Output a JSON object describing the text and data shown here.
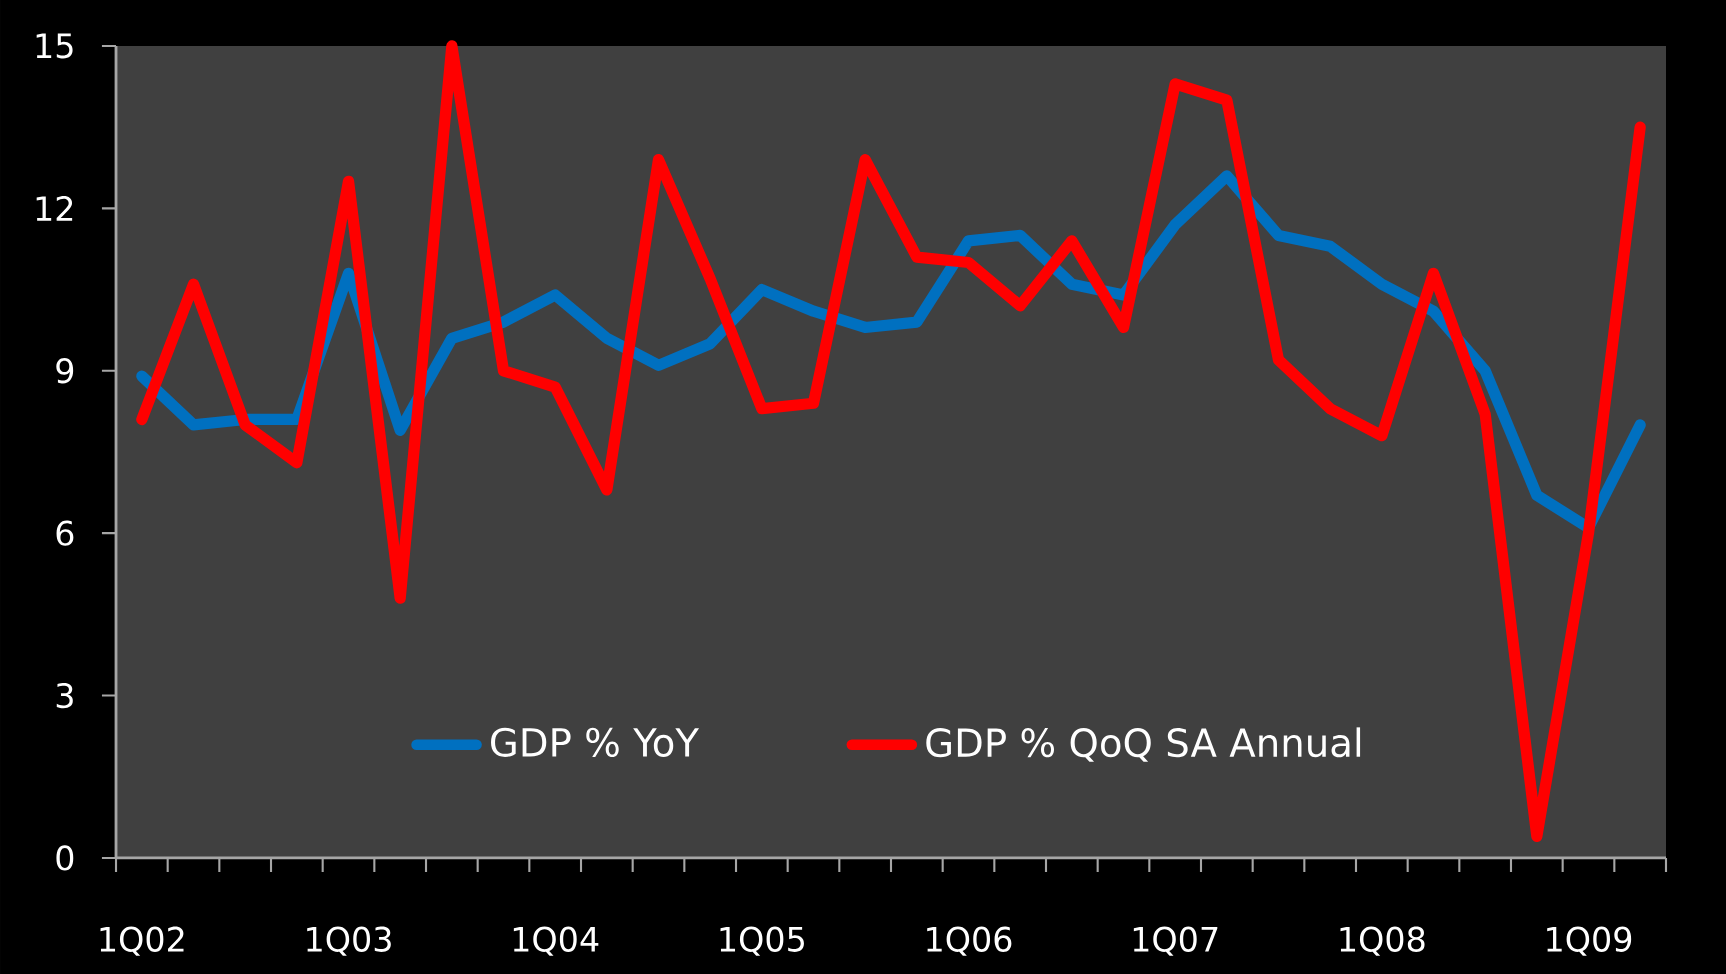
{
  "chart_data": {
    "type": "line",
    "categories": [
      "1Q02",
      null,
      null,
      null,
      "1Q03",
      null,
      null,
      null,
      "1Q04",
      null,
      null,
      null,
      "1Q05",
      null,
      null,
      null,
      "1Q06",
      null,
      null,
      null,
      "1Q07",
      null,
      null,
      null,
      "1Q08",
      null,
      null,
      null,
      "1Q09",
      null
    ],
    "series": [
      {
        "name": "GDP % YoY",
        "color": "#0070c0",
        "values": [
          8.9,
          8.0,
          8.1,
          8.1,
          10.8,
          7.9,
          9.6,
          9.9,
          10.4,
          9.6,
          9.1,
          9.5,
          10.5,
          10.1,
          9.8,
          9.9,
          11.4,
          11.5,
          10.6,
          10.4,
          11.7,
          12.6,
          11.5,
          11.3,
          10.6,
          10.1,
          9.0,
          6.7,
          6.1,
          8.0
        ]
      },
      {
        "name": "GDP % QoQ SA Annual",
        "color": "#ff0000",
        "values": [
          8.1,
          10.6,
          8.0,
          7.3,
          12.5,
          4.8,
          15.0,
          9.0,
          8.7,
          6.8,
          12.9,
          10.7,
          8.3,
          8.4,
          12.9,
          11.1,
          11.0,
          10.2,
          11.4,
          9.8,
          14.3,
          14.0,
          9.2,
          8.3,
          7.8,
          10.8,
          8.2,
          0.4,
          6.0,
          13.5
        ]
      }
    ],
    "ylim": [
      0,
      15
    ],
    "yticks": [
      0,
      3,
      6,
      9,
      12,
      15
    ],
    "grid": false,
    "legend": "bottom",
    "marker": "none",
    "line_style": "solid"
  }
}
